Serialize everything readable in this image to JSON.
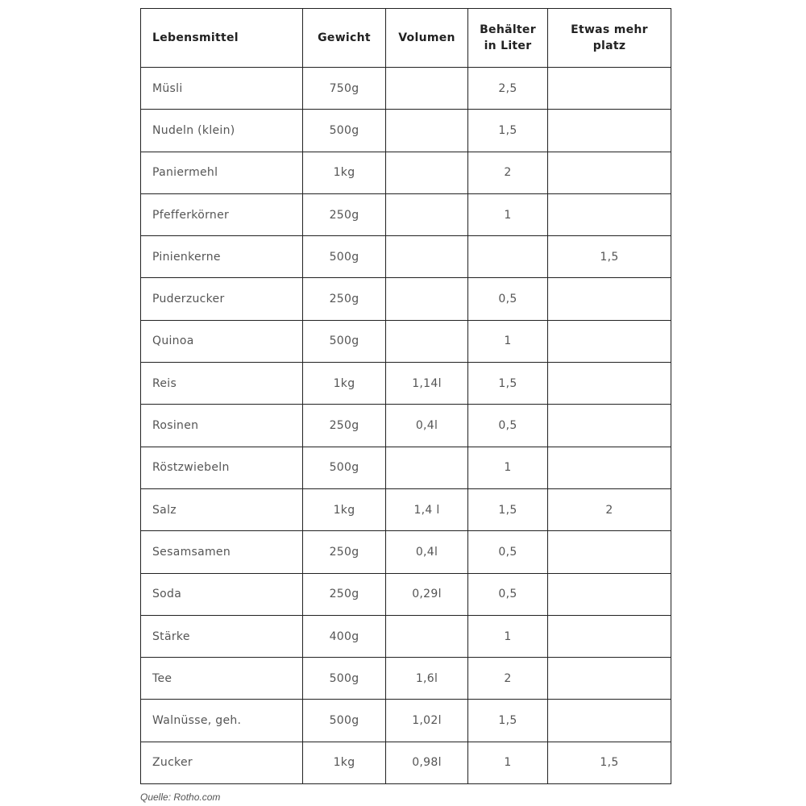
{
  "table": {
    "headers": [
      "Lebensmittel",
      "Gewicht",
      "Volumen",
      "Behälter in Liter",
      "Etwas mehr platz"
    ],
    "rows": [
      [
        "Müsli",
        "750g",
        "",
        "2,5",
        ""
      ],
      [
        "Nudeln (klein)",
        "500g",
        "",
        "1,5",
        ""
      ],
      [
        "Paniermehl",
        "1kg",
        "",
        "2",
        ""
      ],
      [
        "Pfefferkörner",
        "250g",
        "",
        "1",
        ""
      ],
      [
        "Pinienkerne",
        "500g",
        "",
        "",
        "1,5"
      ],
      [
        "Puderzucker",
        "250g",
        "",
        "0,5",
        ""
      ],
      [
        "Quinoa",
        "500g",
        "",
        "1",
        ""
      ],
      [
        "Reis",
        "1kg",
        "1,14l",
        "1,5",
        ""
      ],
      [
        "Rosinen",
        "250g",
        "0,4l",
        "0,5",
        ""
      ],
      [
        "Röstzwiebeln",
        "500g",
        "",
        "1",
        ""
      ],
      [
        "Salz",
        "1kg",
        "1,4 l",
        "1,5",
        "2"
      ],
      [
        "Sesamsamen",
        "250g",
        "0,4l",
        "0,5",
        ""
      ],
      [
        "Soda",
        "250g",
        "0,29l",
        "0,5",
        ""
      ],
      [
        "Stärke",
        "400g",
        "",
        "1",
        ""
      ],
      [
        "Tee",
        "500g",
        "1,6l",
        "2",
        ""
      ],
      [
        "Walnüsse, geh.",
        "500g",
        "1,02l",
        "1,5",
        ""
      ],
      [
        "Zucker",
        "1kg",
        "0,98l",
        "1",
        "1,5"
      ]
    ]
  },
  "caption": "Quelle: Rotho.com"
}
